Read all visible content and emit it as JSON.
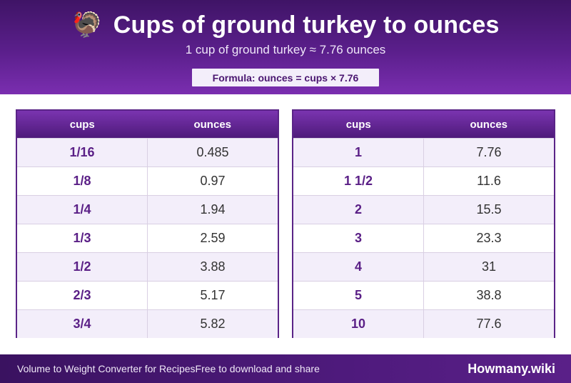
{
  "header": {
    "icon": "turkey-icon",
    "icon_glyph": "🦃",
    "title": "Cups of ground turkey to ounces",
    "subtitle": "1 cup of ground turkey ≈ 7.76 ounces",
    "formula": "Formula: ounces = cups × 7.76"
  },
  "colors": {
    "brand": "#5b1f8c",
    "header_dark": "#3f1466",
    "row_alt": "#f3eefa",
    "cups_text": "#5a1f86"
  },
  "tables": {
    "columns": [
      "cups",
      "ounces"
    ],
    "left": [
      {
        "cups": "1/16",
        "ounces": "0.485"
      },
      {
        "cups": "1/8",
        "ounces": "0.97"
      },
      {
        "cups": "1/4",
        "ounces": "1.94"
      },
      {
        "cups": "1/3",
        "ounces": "2.59"
      },
      {
        "cups": "1/2",
        "ounces": "3.88"
      },
      {
        "cups": "2/3",
        "ounces": "5.17"
      },
      {
        "cups": "3/4",
        "ounces": "5.82"
      }
    ],
    "right": [
      {
        "cups": "1",
        "ounces": "7.76"
      },
      {
        "cups": "1 1/2",
        "ounces": "11.6"
      },
      {
        "cups": "2",
        "ounces": "15.5"
      },
      {
        "cups": "3",
        "ounces": "23.3"
      },
      {
        "cups": "4",
        "ounces": "31"
      },
      {
        "cups": "5",
        "ounces": "38.8"
      },
      {
        "cups": "10",
        "ounces": "77.6"
      }
    ]
  },
  "footer": {
    "left_text": "Volume to Weight Converter for Recipes",
    "middle_text": "Free to download and share",
    "brand": "Howmany.wiki"
  }
}
